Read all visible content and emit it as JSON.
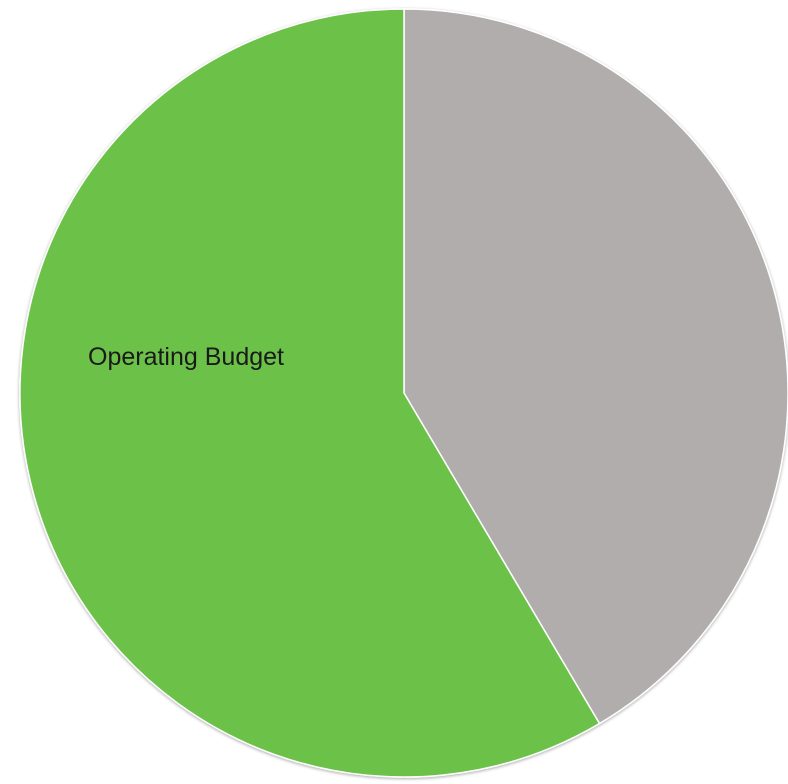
{
  "chart_data": {
    "type": "pie",
    "title": "",
    "slices": [
      {
        "label": "",
        "value": 41.5,
        "color": "#b0adac"
      },
      {
        "label": "Operating Budget",
        "value": 58.5,
        "color": "#6cc24a"
      }
    ],
    "start_angle_deg": 0,
    "direction": "clockwise",
    "legend": "none"
  }
}
